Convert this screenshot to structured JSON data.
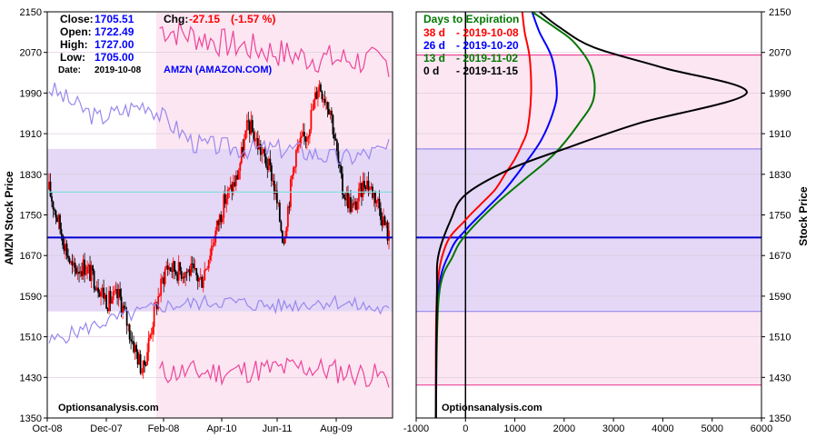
{
  "header": {
    "close_label": "Close:",
    "close_value": "1705.51",
    "open_label": "Open:",
    "open_value": "1722.49",
    "high_label": "High:",
    "high_value": "1727.00",
    "low_label": "Low:",
    "low_value": "1705.00",
    "date_label": "Date:",
    "date_value": "2019-10-08",
    "chg_label": "Chg:",
    "chg_value": "-27.15",
    "chg_pct": "(-1.57 %)",
    "symbol": "AMZN (AMAZON.COM)"
  },
  "watermark": "Optionsanalysis.com",
  "colors": {
    "red": "#ff0000",
    "blue": "#0000ff",
    "green": "#007700",
    "black": "#000000",
    "band_purple": "#e4d8f6",
    "band_pink": "#fbe6f2",
    "outer_pink": "#ee4499",
    "inner_purple": "#9988ee",
    "cyan": "#88dddd",
    "price_line": "#0000cc",
    "up_candle": "#ff0000",
    "down_candle": "#000000"
  },
  "chart_data": [
    {
      "type": "candlestick",
      "title": "",
      "ylabel": "AMZN Stock Price",
      "ylim": [
        1350,
        2150
      ],
      "yticks": [
        "2150",
        "2070",
        "1990",
        "1910",
        "1830",
        "1750",
        "1670",
        "1590",
        "1510",
        "1430",
        "1350"
      ],
      "xticks": [
        "Oct-08",
        "Dec-07",
        "Feb-08",
        "Apr-10",
        "Jun-11",
        "Aug-09"
      ],
      "current_price": 1705.51,
      "reference_line": 1795,
      "close_path": [
        {
          "x": "Oct-08",
          "y": 1800
        },
        {
          "x": "Oct-15",
          "y": 1720
        },
        {
          "x": "Oct-25",
          "y": 1640
        },
        {
          "x": "Nov-05",
          "y": 1650
        },
        {
          "x": "Nov-15",
          "y": 1620
        },
        {
          "x": "Nov-26",
          "y": 1580
        },
        {
          "x": "Dec-07",
          "y": 1590
        },
        {
          "x": "Dec-18",
          "y": 1510
        },
        {
          "x": "Dec-24",
          "y": 1440
        },
        {
          "x": "Jan-04",
          "y": 1560
        },
        {
          "x": "Jan-15",
          "y": 1650
        },
        {
          "x": "Jan-25",
          "y": 1640
        },
        {
          "x": "Feb-08",
          "y": 1640
        },
        {
          "x": "Feb-22",
          "y": 1620
        },
        {
          "x": "Mar-05",
          "y": 1700
        },
        {
          "x": "Mar-20",
          "y": 1780
        },
        {
          "x": "Apr-10",
          "y": 1820
        },
        {
          "x": "Apr-25",
          "y": 1930
        },
        {
          "x": "May-10",
          "y": 1880
        },
        {
          "x": "May-24",
          "y": 1830
        },
        {
          "x": "Jun-03",
          "y": 1700
        },
        {
          "x": "Jun-11",
          "y": 1870
        },
        {
          "x": "Jun-26",
          "y": 1910
        },
        {
          "x": "Jul-10",
          "y": 2010
        },
        {
          "x": "Jul-25",
          "y": 1960
        },
        {
          "x": "Aug-09",
          "y": 1800
        },
        {
          "x": "Aug-26",
          "y": 1760
        },
        {
          "x": "Sep-10",
          "y": 1820
        },
        {
          "x": "Sep-25",
          "y": 1780
        },
        {
          "x": "Oct-08",
          "y": 1705
        }
      ],
      "outer_band_top": [
        {
          "x": "Feb-08",
          "y": 2140
        },
        {
          "x": "Apr-10",
          "y": 2130
        },
        {
          "x": "Jun-11",
          "y": 2090
        },
        {
          "x": "Aug-09",
          "y": 2060
        },
        {
          "x": "Oct-08",
          "y": 2050
        }
      ],
      "inner_band_top": [
        {
          "x": "Oct-08",
          "y": 2000
        },
        {
          "x": "Dec-07",
          "y": 1940
        },
        {
          "x": "Jan-15",
          "y": 1970
        },
        {
          "x": "Feb-08",
          "y": 1890
        },
        {
          "x": "Apr-10",
          "y": 1880
        },
        {
          "x": "Jun-11",
          "y": 1880
        },
        {
          "x": "Aug-09",
          "y": 1860
        },
        {
          "x": "Oct-08",
          "y": 1880
        }
      ],
      "inner_band_bottom": [
        {
          "x": "Oct-08",
          "y": 1500
        },
        {
          "x": "Dec-07",
          "y": 1540
        },
        {
          "x": "Feb-08",
          "y": 1570
        },
        {
          "x": "Apr-10",
          "y": 1580
        },
        {
          "x": "Jun-11",
          "y": 1570
        },
        {
          "x": "Aug-09",
          "y": 1580
        },
        {
          "x": "Oct-08",
          "y": 1560
        }
      ],
      "outer_band_bottom": [
        {
          "x": "Feb-08",
          "y": 1440
        },
        {
          "x": "Apr-10",
          "y": 1440
        },
        {
          "x": "Jun-11",
          "y": 1440
        },
        {
          "x": "Aug-09",
          "y": 1450
        },
        {
          "x": "Oct-08",
          "y": 1430
        }
      ]
    },
    {
      "type": "line",
      "title": "Days to Expiration",
      "ylabel": "Stock Price",
      "xlim": [
        -1000,
        6000
      ],
      "ylim": [
        1350,
        2150
      ],
      "xticks": [
        "-1000",
        "0",
        "1000",
        "2000",
        "3000",
        "4000",
        "5000",
        "6000"
      ],
      "yticks": [
        "2150",
        "2070",
        "1990",
        "1910",
        "1830",
        "1750",
        "1670",
        "1590",
        "1510",
        "1430",
        "1350"
      ],
      "current_price": 1705.51,
      "bands": {
        "outer_top": 2065,
        "inner_top": 1880,
        "inner_bottom": 1560,
        "outer_bottom": 1415
      },
      "series": [
        {
          "name": "38 d",
          "date": "- 2019-10-08",
          "color": "#ff0000",
          "points": [
            [
              -600,
              1350
            ],
            [
              -580,
              1590
            ],
            [
              -400,
              1690
            ],
            [
              0,
              1740
            ],
            [
              300,
              1770
            ],
            [
              600,
              1800
            ],
            [
              800,
              1830
            ],
            [
              1000,
              1860
            ],
            [
              1150,
              1890
            ],
            [
              1260,
              1920
            ],
            [
              1330,
              1990
            ],
            [
              1300,
              2060
            ],
            [
              1200,
              2110
            ],
            [
              1150,
              2150
            ]
          ]
        },
        {
          "name": "26 d",
          "date": "- 2019-10-20",
          "color": "#0000ff",
          "points": [
            [
              -600,
              1350
            ],
            [
              -560,
              1590
            ],
            [
              -300,
              1680
            ],
            [
              0,
              1720
            ],
            [
              400,
              1760
            ],
            [
              800,
              1800
            ],
            [
              1200,
              1850
            ],
            [
              1550,
              1900
            ],
            [
              1800,
              1960
            ],
            [
              1850,
              2000
            ],
            [
              1750,
              2060
            ],
            [
              1500,
              2110
            ],
            [
              1350,
              2150
            ]
          ]
        },
        {
          "name": "13 d",
          "date": "- 2019-11-02",
          "color": "#007700",
          "points": [
            [
              -600,
              1350
            ],
            [
              -540,
              1590
            ],
            [
              -250,
              1670
            ],
            [
              0,
              1710
            ],
            [
              600,
              1770
            ],
            [
              1200,
              1820
            ],
            [
              1800,
              1870
            ],
            [
              2300,
              1930
            ],
            [
              2600,
              1980
            ],
            [
              2550,
              2040
            ],
            [
              2200,
              2090
            ],
            [
              1800,
              2120
            ],
            [
              1350,
              2150
            ]
          ]
        },
        {
          "name": "0 d",
          "date": "- 2019-11-15",
          "color": "#000000",
          "points": [
            [
              -600,
              1350
            ],
            [
              -580,
              1590
            ],
            [
              -550,
              1670
            ],
            [
              -300,
              1740
            ],
            [
              0,
              1790
            ],
            [
              900,
              1840
            ],
            [
              2000,
              1880
            ],
            [
              3500,
              1930
            ],
            [
              5700,
              1990
            ],
            [
              4000,
              2040
            ],
            [
              2600,
              2080
            ],
            [
              1900,
              2120
            ],
            [
              1500,
              2150
            ]
          ]
        }
      ],
      "zero_line": 0
    }
  ]
}
